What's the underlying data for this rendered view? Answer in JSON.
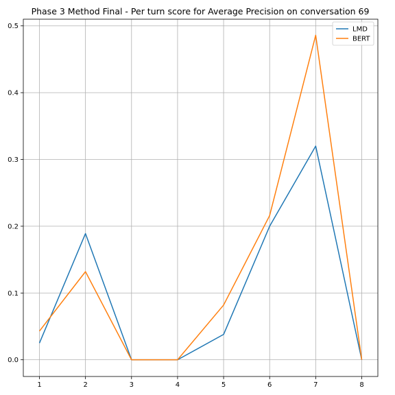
{
  "chart_data": {
    "type": "line",
    "title": "Phase 3 Method Final - Per turn score for Average Precision on conversation 69",
    "xlabel": "",
    "ylabel": "",
    "x": [
      1,
      2,
      3,
      4,
      5,
      6,
      7,
      8
    ],
    "series": [
      {
        "name": "LMD",
        "color": "#1f77b4",
        "values": [
          0.025,
          0.189,
          0.0,
          0.0,
          0.038,
          0.2,
          0.32,
          0.0
        ]
      },
      {
        "name": "BERT",
        "color": "#ff7f0e",
        "values": [
          0.043,
          0.132,
          0.0,
          0.0,
          0.082,
          0.216,
          0.486,
          0.0
        ]
      }
    ],
    "xlim": [
      0.65,
      8.35
    ],
    "ylim": [
      -0.025,
      0.51
    ],
    "xticks": [
      1,
      2,
      3,
      4,
      5,
      6,
      7,
      8
    ],
    "yticks": [
      0.0,
      0.1,
      0.2,
      0.3,
      0.4,
      0.5
    ],
    "ytick_labels": [
      "0.0",
      "0.1",
      "0.2",
      "0.3",
      "0.4",
      "0.5"
    ],
    "grid": true,
    "legend_position": "top-right"
  }
}
